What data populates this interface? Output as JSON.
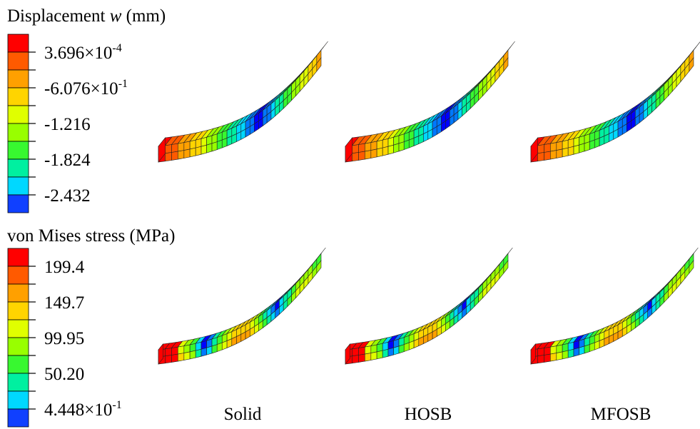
{
  "displacement_legend": {
    "title": {
      "text": "Displacement ",
      "symbol": "w",
      "unit": " (mm)"
    },
    "labels": [
      {
        "base": "3.696×10",
        "exp": "-4"
      },
      {
        "base": "-6.076×10",
        "exp": "-1"
      },
      {
        "base": "-1.216"
      },
      {
        "base": "-1.824"
      },
      {
        "base": "-2.432"
      }
    ]
  },
  "stress_legend": {
    "title": "von Mises stress (MPa)",
    "labels": [
      {
        "base": "199.4"
      },
      {
        "base": "149.7"
      },
      {
        "base": "99.95"
      },
      {
        "base": "50.20"
      },
      {
        "base": "4.448×10",
        "exp": "-1"
      }
    ]
  },
  "columns": [
    "Solid",
    "HOSB",
    "MFOSB"
  ]
}
